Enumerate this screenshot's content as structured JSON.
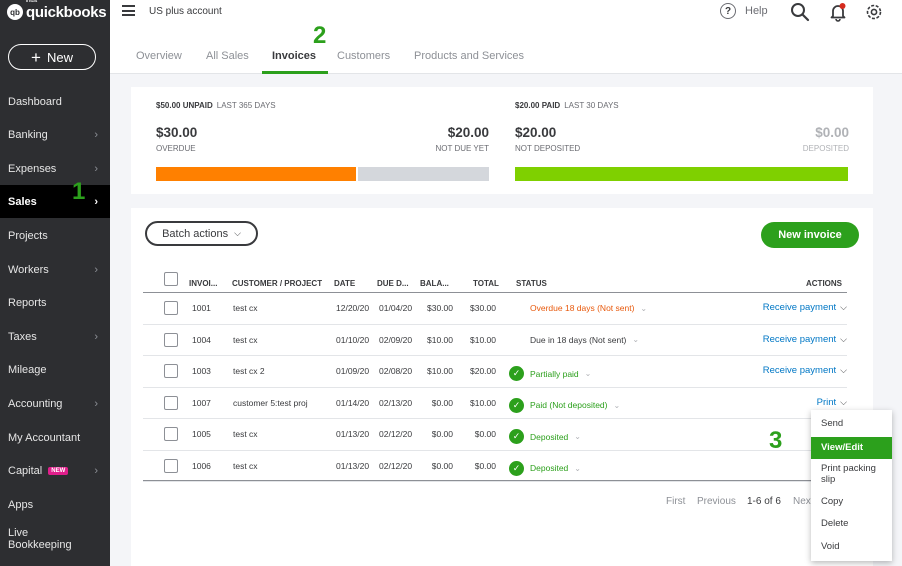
{
  "app": {
    "logo_badge": "qb",
    "logo_brand": "intuit",
    "logo_text": "quickbooks",
    "company": "US plus account",
    "help_label": "Help",
    "new_button": "New"
  },
  "sidebar": {
    "items": [
      {
        "label": "Dashboard",
        "chevron": false
      },
      {
        "label": "Banking",
        "chevron": true
      },
      {
        "label": "Expenses",
        "chevron": true
      },
      {
        "label": "Sales",
        "chevron": true,
        "active": true
      },
      {
        "label": "Projects",
        "chevron": false
      },
      {
        "label": "Workers",
        "chevron": true
      },
      {
        "label": "Reports",
        "chevron": false
      },
      {
        "label": "Taxes",
        "chevron": true
      },
      {
        "label": "Mileage",
        "chevron": false
      },
      {
        "label": "Accounting",
        "chevron": true
      },
      {
        "label": "My Accountant",
        "chevron": false
      },
      {
        "label": "Capital",
        "chevron": true,
        "badge": "NEW"
      },
      {
        "label": "Apps",
        "chevron": false
      },
      {
        "label": "Live Bookkeeping",
        "chevron": false
      }
    ],
    "step_marker": "1"
  },
  "tabs": {
    "items": [
      "Overview",
      "All Sales",
      "Invoices",
      "Customers",
      "Products and Services"
    ],
    "active": "Invoices",
    "step_marker": "2"
  },
  "summary": {
    "unpaid_label": "$50.00 UNPAID",
    "unpaid_period": "LAST 365 DAYS",
    "overdue_amount": "$30.00",
    "overdue_label": "OVERDUE",
    "not_due_amount": "$20.00",
    "not_due_label": "NOT DUE YET",
    "paid_label": "$20.00 PAID",
    "paid_period": "LAST 30 DAYS",
    "not_deposited_amount": "$20.00",
    "not_deposited_label": "NOT DEPOSITED",
    "deposited_amount": "$0.00",
    "deposited_label": "DEPOSITED",
    "overdue_fraction": 0.6,
    "not_deposited_fraction": 1.0,
    "colors": {
      "overdue": "#ff8000",
      "not_due": "#d4d7dc",
      "paid": "#7fd000"
    }
  },
  "toolbar": {
    "batch_actions": "Batch actions",
    "new_invoice": "New invoice"
  },
  "table": {
    "headers": {
      "invoice": "INVOI...",
      "customer": "CUSTOMER / PROJECT",
      "date": "DATE",
      "due": "DUE D...",
      "balance": "BALA...",
      "total": "TOTAL",
      "status": "STATUS",
      "actions": "ACTIONS"
    },
    "rows": [
      {
        "invoice": "1001",
        "customer": "test cx",
        "date": "12/20/20",
        "due": "01/04/20",
        "balance": "$30.00",
        "total": "$30.00",
        "status": "Overdue 18 days (Not sent)",
        "status_type": "overdue",
        "action": "Receive payment"
      },
      {
        "invoice": "1004",
        "customer": "test cx",
        "date": "01/10/20",
        "due": "02/09/20",
        "balance": "$10.00",
        "total": "$10.00",
        "status": "Due in 18 days (Not sent)",
        "status_type": "normal",
        "action": "Receive payment"
      },
      {
        "invoice": "1003",
        "customer": "test cx 2",
        "date": "01/09/20",
        "due": "02/08/20",
        "balance": "$10.00",
        "total": "$20.00",
        "status": "Partially paid",
        "status_type": "green",
        "action": "Receive payment"
      },
      {
        "invoice": "1007",
        "customer": "customer 5:test proj",
        "date": "01/14/20",
        "due": "02/13/20",
        "balance": "$0.00",
        "total": "$10.00",
        "status": "Paid (Not deposited)",
        "status_type": "green",
        "action": "Print"
      },
      {
        "invoice": "1005",
        "customer": "test cx",
        "date": "01/13/20",
        "due": "02/12/20",
        "balance": "$0.00",
        "total": "$0.00",
        "status": "Deposited",
        "status_type": "green",
        "action": ""
      },
      {
        "invoice": "1006",
        "customer": "test cx",
        "date": "01/13/20",
        "due": "02/12/20",
        "balance": "$0.00",
        "total": "$0.00",
        "status": "Deposited",
        "status_type": "green",
        "action": ""
      }
    ]
  },
  "pager": {
    "first": "First",
    "previous": "Previous",
    "range": "1-6 of 6",
    "next": "Next"
  },
  "menu": {
    "items": [
      "Send",
      "View/Edit",
      "Print packing slip",
      "Copy",
      "Delete",
      "Void"
    ],
    "active": "View/Edit",
    "step_marker": "3"
  },
  "icons": {
    "hamburger": "menu-icon",
    "help": "help-icon",
    "search": "search-icon",
    "notifications": "bell-icon",
    "settings": "gear-icon"
  }
}
